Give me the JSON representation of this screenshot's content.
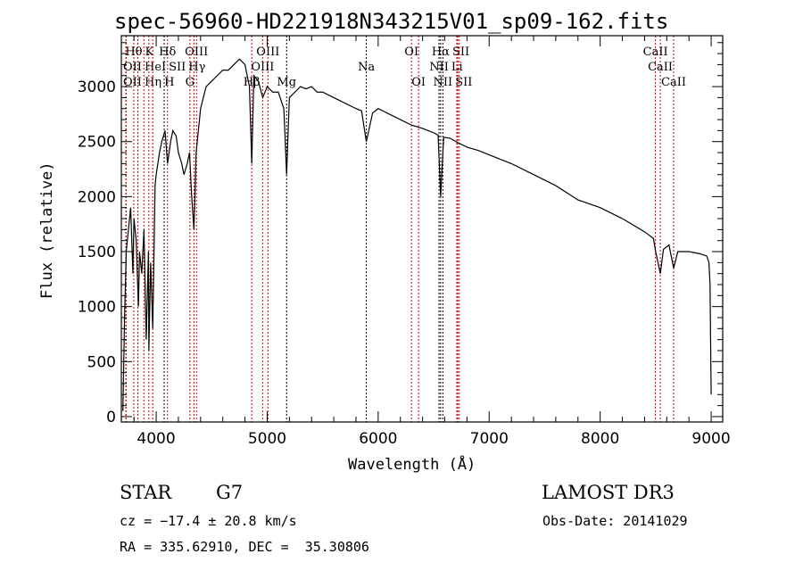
{
  "chart_data": {
    "type": "line",
    "title": "spec-56960-HD221918N343215V01_sp09-162.fits",
    "xlabel": "Wavelength (Å)",
    "ylabel": "Flux (relative)",
    "xlim": [
      3686,
      9104
    ],
    "ylim": [
      -49,
      3463
    ],
    "xticks": [
      4000,
      5000,
      6000,
      7000,
      8000,
      9000
    ],
    "yticks": [
      0,
      500,
      1000,
      1500,
      2000,
      2500,
      3000
    ],
    "grid": false,
    "series": [
      {
        "name": "spectrum",
        "x": [
          3700,
          3715,
          3730,
          3750,
          3770,
          3790,
          3800,
          3820,
          3840,
          3850,
          3870,
          3890,
          3910,
          3930,
          3934,
          3950,
          3969,
          3990,
          4000,
          4030,
          4050,
          4080,
          4102,
          4130,
          4150,
          4180,
          4200,
          4230,
          4250,
          4280,
          4300,
          4320,
          4340,
          4360,
          4400,
          4450,
          4500,
          4550,
          4600,
          4650,
          4700,
          4750,
          4800,
          4840,
          4861,
          4880,
          4920,
          4960,
          5000,
          5050,
          5100,
          5150,
          5175,
          5200,
          5250,
          5300,
          5350,
          5400,
          5450,
          5500,
          5600,
          5700,
          5800,
          5850,
          5893,
          5950,
          6000,
          6100,
          6200,
          6300,
          6400,
          6500,
          6540,
          6563,
          6590,
          6650,
          6700,
          6800,
          6900,
          7000,
          7200,
          7400,
          7600,
          7800,
          8000,
          8200,
          8400,
          8480,
          8500,
          8542,
          8570,
          8620,
          8662,
          8700,
          8800,
          8900,
          8960,
          8980,
          8990,
          9000
        ],
        "y": [
          50,
          900,
          1500,
          1700,
          1900,
          1300,
          1800,
          1600,
          1000,
          1500,
          1300,
          1700,
          700,
          1500,
          600,
          1400,
          800,
          2100,
          2200,
          2400,
          2500,
          2600,
          2300,
          2500,
          2600,
          2550,
          2400,
          2300,
          2200,
          2300,
          2400,
          2000,
          1700,
          2400,
          2800,
          3000,
          3050,
          3100,
          3150,
          3150,
          3200,
          3250,
          3200,
          3000,
          2300,
          3100,
          3050,
          2900,
          3000,
          2950,
          2950,
          2800,
          2200,
          2900,
          2950,
          3000,
          2980,
          3000,
          2950,
          2950,
          2900,
          2850,
          2800,
          2780,
          2500,
          2760,
          2800,
          2750,
          2700,
          2650,
          2620,
          2580,
          2560,
          2000,
          2540,
          2530,
          2500,
          2450,
          2420,
          2380,
          2300,
          2200,
          2100,
          1970,
          1900,
          1800,
          1680,
          1620,
          1500,
          1300,
          1520,
          1560,
          1350,
          1500,
          1500,
          1480,
          1460,
          1400,
          1200,
          200
        ]
      }
    ],
    "lines": [
      {
        "label": "Hθ",
        "wave": 3798,
        "row": 1,
        "color": "#cc0000"
      },
      {
        "label": "K",
        "wave": 3934,
        "row": 1,
        "color": "#cc0000"
      },
      {
        "label": "Hδ",
        "wave": 4102,
        "row": 1,
        "color": "#cc0000"
      },
      {
        "label": "OIII",
        "wave": 4363,
        "row": 1,
        "color": "#cc0000"
      },
      {
        "label": "OIII",
        "wave": 5007,
        "row": 1,
        "color": "#cc0000"
      },
      {
        "label": "OI",
        "wave": 6300,
        "row": 1,
        "color": "#cc0000"
      },
      {
        "label": "Hα",
        "wave": 6563,
        "row": 1,
        "color": "#000000"
      },
      {
        "label": "SII",
        "wave": 6717,
        "row": 1,
        "color": "#cc0000"
      },
      {
        "label": "CaII",
        "wave": 8498,
        "row": 1,
        "color": "#cc0000"
      },
      {
        "label": "OII",
        "wave": 3727,
        "row": 2,
        "color": "#cc0000"
      },
      {
        "label": "HeI",
        "wave": 3889,
        "row": 2,
        "color": "#cc0000"
      },
      {
        "label": "SII",
        "wave": 4072,
        "row": 2,
        "color": "#000000"
      },
      {
        "label": "Hγ",
        "wave": 4340,
        "row": 2,
        "color": "#cc0000"
      },
      {
        "label": "OIII",
        "wave": 4959,
        "row": 2,
        "color": "#cc0000"
      },
      {
        "label": "Na",
        "wave": 5893,
        "row": 2,
        "color": "#000000"
      },
      {
        "label": "NII",
        "wave": 6548,
        "row": 2,
        "color": "#000000"
      },
      {
        "label": "Li",
        "wave": 6708,
        "row": 2,
        "color": "#cc0000"
      },
      {
        "label": "CaII",
        "wave": 8542,
        "row": 2,
        "color": "#cc0000"
      },
      {
        "label": "OII",
        "wave": 3729,
        "row": 3,
        "color": "#cc0000"
      },
      {
        "label": "Hη",
        "wave": 3835,
        "row": 3,
        "color": "#cc0000"
      },
      {
        "label": "H",
        "wave": 3969,
        "row": 3,
        "color": "#cc0000"
      },
      {
        "label": "G",
        "wave": 4304,
        "row": 3,
        "color": "#cc0000"
      },
      {
        "label": "Hβ",
        "wave": 4861,
        "row": 3,
        "color": "#cc0000"
      },
      {
        "label": "Mg",
        "wave": 5175,
        "row": 3,
        "color": "#000000"
      },
      {
        "label": "OI",
        "wave": 6364,
        "row": 3,
        "color": "#cc0000"
      },
      {
        "label": "NII",
        "wave": 6583,
        "row": 3,
        "color": "#000000"
      },
      {
        "label": "SII",
        "wave": 6731,
        "row": 3,
        "color": "#cc0000"
      },
      {
        "label": "CaII",
        "wave": 8662,
        "row": 3,
        "color": "#cc0000"
      }
    ]
  },
  "info": {
    "class": "STAR",
    "subclass": "G7",
    "survey": "LAMOST DR3",
    "cz": "cz = −17.4 ± 20.8 km/s",
    "obs_date": "Obs-Date: 20141029",
    "coords": "RA = 335.62910, DEC =  35.30806"
  }
}
